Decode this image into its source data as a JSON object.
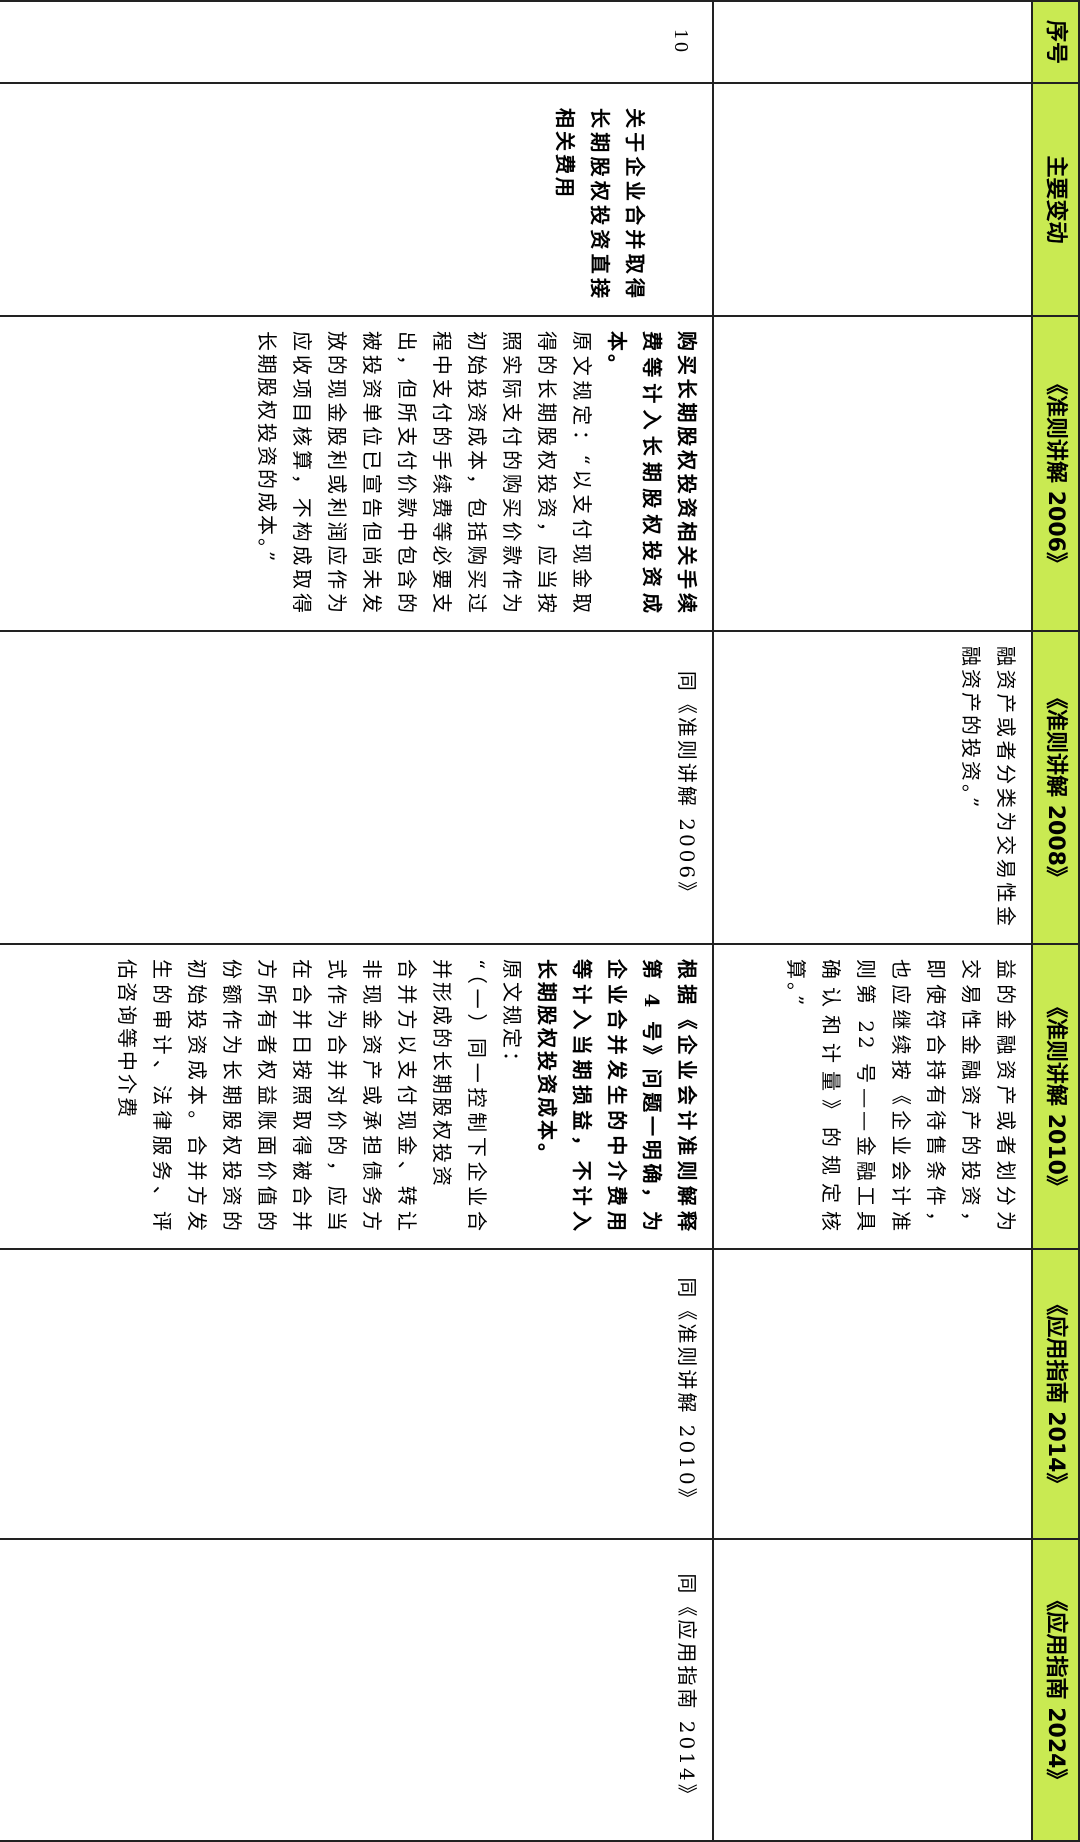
{
  "header": {
    "columns": [
      "序号",
      "主要变动",
      "《准则讲解 2006》",
      "《准则讲解 2008》",
      "《准则讲解 2010》",
      "《应用指南 2014》",
      "《应用指南 2024》"
    ],
    "background_color": "#c9ea52"
  },
  "continued_row": {
    "seq": "",
    "change": "",
    "g2006": "",
    "g2008": "融资产或者分类为交易性金融资产的投资。”",
    "g2010": "益的金融资产或者划分为交易性金融资产的投资，即使符合持有待售条件，也应继续按《企业会计准则第 22 号——金融工具确认和计量》的规定核算。”",
    "g2014": "",
    "g2024": ""
  },
  "row10": {
    "seq": "10",
    "change": "关于企业合并取得长期股权投资直接相关费用",
    "g2006": {
      "summary": "购买长期股权投资相关手续费等计入长期股权投资成本。",
      "quote": "原文规定：“以支付现金取得的长期股权投资，应当按照实际支付的购买价款作为初始投资成本，包括购买过程中支付的手续费等必要支出，但所支付价款中包含的被投资单位已宣告但尚未发放的现金股利或利润应作为应收项目核算，不构成取得长期股权投资的成本。”"
    },
    "g2008": "同《准则讲解 2006》",
    "g2010": {
      "summary": "根据《企业会计准则解释第 4 号》问题一明确，为企业合并发生的中介费用等计入当期损益，不计入长期股权投资成本。",
      "quote_label": "原文规定：",
      "quote_heading": "“（一）同一控制下企业合并形成的长期股权投资",
      "quote_body": "合并方以支付现金、转让非现金资产或承担债务方式作为合并对价的，应当在合并日按照取得被合并方所有者权益账面价值的份额作为长期股权投资的初始投资成本。合并方发生的审计、法律服务、评估咨询等中介费"
    },
    "g2014": "同《准则讲解 2010》",
    "g2024": "同《应用指南 2014》"
  }
}
